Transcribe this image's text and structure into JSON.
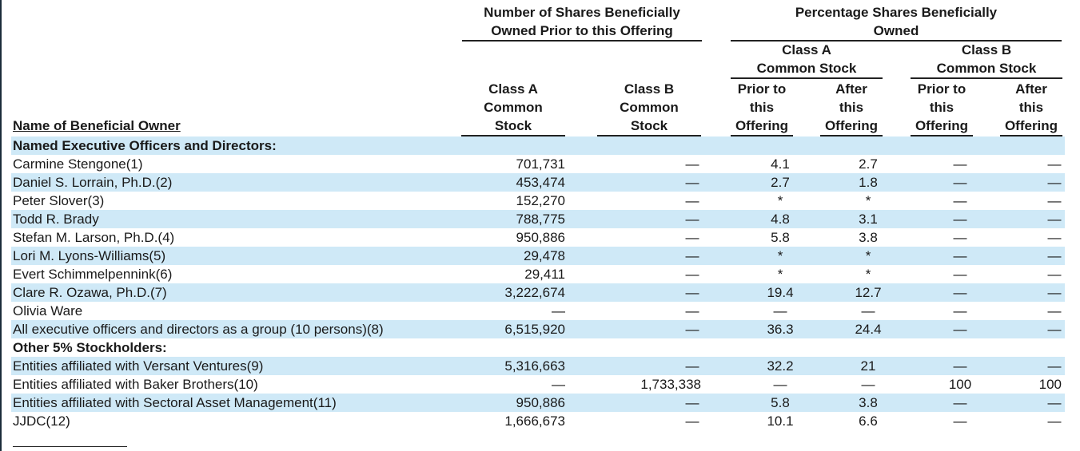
{
  "header": {
    "shares_group": [
      "Number of Shares Beneficially",
      "Owned Prior to this Offering"
    ],
    "pct_group": [
      "Percentage Shares Beneficially",
      "Owned"
    ],
    "pct_class_a": [
      "Class A",
      "Common Stock"
    ],
    "pct_class_b": [
      "Class B",
      "Common Stock"
    ],
    "name_col": "Name of Beneficial Owner",
    "class_a_col": [
      "Class A",
      "Common",
      "Stock"
    ],
    "class_b_col": [
      "Class B",
      "Common",
      "Stock"
    ],
    "prior_col": [
      "Prior to",
      "this",
      "Offering"
    ],
    "after_col": [
      "After",
      "this",
      "Offering"
    ]
  },
  "rows": [
    {
      "type": "section",
      "name": "Named Executive Officers and Directors:"
    },
    {
      "name": "Carmine Stengone(1)",
      "a": "701,731",
      "b": "—",
      "ap": "4.1",
      "aa": "2.7",
      "bp": "—",
      "ba": "—"
    },
    {
      "name": "Daniel S. Lorrain, Ph.D.(2)",
      "a": "453,474",
      "b": "—",
      "ap": "2.7",
      "aa": "1.8",
      "bp": "—",
      "ba": "—"
    },
    {
      "name": "Peter Slover(3)",
      "a": "152,270",
      "b": "—",
      "ap": "*",
      "aa": "*",
      "bp": "—",
      "ba": "—"
    },
    {
      "name": "Todd R. Brady",
      "a": "788,775",
      "b": "—",
      "ap": "4.8",
      "aa": "3.1",
      "bp": "—",
      "ba": "—"
    },
    {
      "name": "Stefan M. Larson, Ph.D.(4)",
      "a": "950,886",
      "b": "—",
      "ap": "5.8",
      "aa": "3.8",
      "bp": "—",
      "ba": "—"
    },
    {
      "name": "Lori M. Lyons-Williams(5)",
      "a": "29,478",
      "b": "—",
      "ap": "*",
      "aa": "*",
      "bp": "—",
      "ba": "—"
    },
    {
      "name": "Evert Schimmelpennink(6)",
      "a": "29,411",
      "b": "—",
      "ap": "*",
      "aa": "*",
      "bp": "—",
      "ba": "—"
    },
    {
      "name": "Clare R. Ozawa, Ph.D.(7)",
      "a": "3,222,674",
      "b": "—",
      "ap": "19.4",
      "aa": "12.7",
      "bp": "—",
      "ba": "—"
    },
    {
      "name": "Olivia Ware",
      "a": "—",
      "b": "—",
      "ap": "—",
      "aa": "—",
      "bp": "—",
      "ba": "—"
    },
    {
      "name": "All executive officers and directors as a group (10 persons)(8)",
      "a": "6,515,920",
      "b": "—",
      "ap": "36.3",
      "aa": "24.4",
      "bp": "—",
      "ba": "—"
    },
    {
      "type": "section",
      "name": "Other 5% Stockholders:"
    },
    {
      "name": "Entities affiliated with Versant Ventures(9)",
      "a": "5,316,663",
      "b": "—",
      "ap": "32.2",
      "aa": "21",
      "bp": "—",
      "ba": "—"
    },
    {
      "name": "Entities affiliated with Baker Brothers(10)",
      "a": "—",
      "b": "1,733,338",
      "ap": "—",
      "aa": "—",
      "bp": "100",
      "ba": "100"
    },
    {
      "name": "Entities affiliated with Sectoral Asset Management(11)",
      "a": "950,886",
      "b": "—",
      "ap": "5.8",
      "aa": "3.8",
      "bp": "—",
      "ba": "—"
    },
    {
      "name": "JJDC(12)",
      "a": "1,666,673",
      "b": "—",
      "ap": "10.1",
      "aa": "6.6",
      "bp": "—",
      "ba": "—"
    }
  ]
}
